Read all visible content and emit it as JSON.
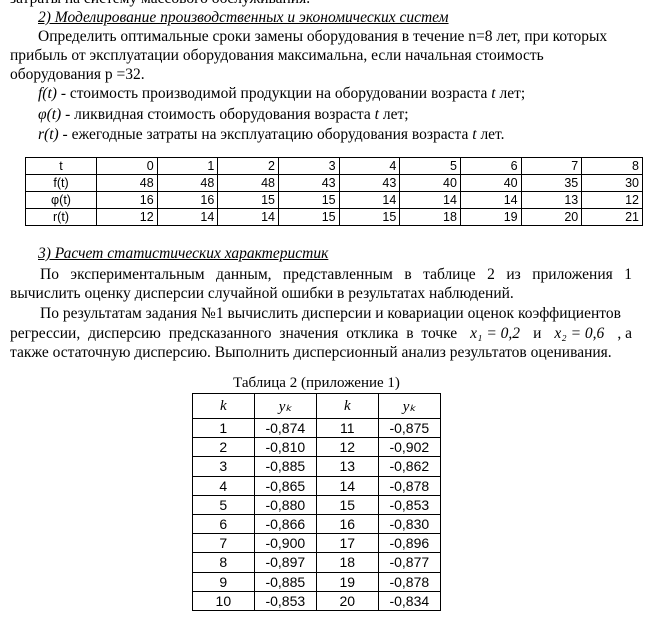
{
  "top_cut_line": "затраты на систему массового обслуживания.",
  "section2": {
    "heading": "2)  Моделирование производственных и экономических систем",
    "para_lines": [
      "Определить оптимальные сроки замены оборудования в течение n=8 лет, при которых",
      "прибыль от эксплуатации оборудования максимальна, если начальная стоимость",
      "оборудования p =32."
    ],
    "definitions": [
      {
        "symbol": "f(t)",
        "text": " - стоимость производимой продукции на оборудовании возраста ",
        "var": "t",
        "tail": " лет;"
      },
      {
        "symbol": "φ(t)",
        "text": " - ликвидная стоимость оборудования возраста ",
        "var": "t",
        "tail": " лет;"
      },
      {
        "symbol": "r(t)",
        "text": " - ежегодные затраты на эксплуатацию оборудования возраста ",
        "var": "t",
        "tail": " лет."
      }
    ],
    "table": {
      "rows": [
        {
          "label": "t",
          "values": [
            "0",
            "1",
            "2",
            "3",
            "4",
            "5",
            "6",
            "7",
            "8"
          ]
        },
        {
          "label": "f(t)",
          "values": [
            "48",
            "48",
            "48",
            "43",
            "43",
            "40",
            "40",
            "35",
            "30"
          ]
        },
        {
          "label": "φ(t)",
          "values": [
            "16",
            "16",
            "15",
            "15",
            "14",
            "14",
            "14",
            "13",
            "12"
          ]
        },
        {
          "label": "r(t)",
          "values": [
            "12",
            "14",
            "14",
            "15",
            "15",
            "18",
            "19",
            "20",
            "21"
          ]
        }
      ]
    }
  },
  "section3": {
    "heading": "3)  Расчет статистических характеристик",
    "para1_lines": [
      "По экспериментальным данным, представленным в таблице 2 из приложения 1",
      "вычислить оценку дисперсии случайной ошибки в результатах наблюдений."
    ],
    "para2_lines": [
      "По результатам задания №1 вычислить дисперсии и ковариации оценок коэффициентов",
      "регрессии, дисперсию предсказанного значения отклика в точке",
      "также остаточную дисперсию. Выполнить дисперсионный анализ результатов оценивания."
    ],
    "point": {
      "x1": "x₁ = 0,2",
      "and": "и",
      "x2": "x₂ = 0,6",
      "tail": ", а"
    }
  },
  "table2": {
    "caption": "Таблица 2 (приложение 1)",
    "headers": [
      "k",
      "yₖ",
      "k",
      "yₖ"
    ],
    "rows": [
      [
        "1",
        "-0,874",
        "11",
        "-0,875"
      ],
      [
        "2",
        "-0,810",
        "12",
        "-0,902"
      ],
      [
        "3",
        "-0,885",
        "13",
        "-0,862"
      ],
      [
        "4",
        "-0,865",
        "14",
        "-0,878"
      ],
      [
        "5",
        "-0,880",
        "15",
        "-0,853"
      ],
      [
        "6",
        "-0,866",
        "16",
        "-0,830"
      ],
      [
        "7",
        "-0,900",
        "17",
        "-0,896"
      ],
      [
        "8",
        "-0,897",
        "18",
        "-0,877"
      ],
      [
        "9",
        "-0,885",
        "19",
        "-0,878"
      ],
      [
        "10",
        "-0,853",
        "20",
        "-0,834"
      ]
    ]
  }
}
